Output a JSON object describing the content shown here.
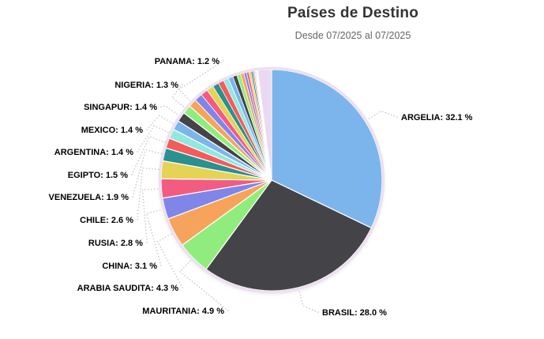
{
  "chart_data": {
    "type": "pie",
    "title": "Países de Destino",
    "subtitle": "Desde 07/2025 al 07/2025",
    "unit": "%",
    "start_angle_deg": 0,
    "direction": "clockwise",
    "legend": "none",
    "label_format": "NAME: value %",
    "slices": [
      {
        "name": "ARGELIA",
        "value": 32.1,
        "color": "#7cb5ec"
      },
      {
        "name": "BRASIL",
        "value": 28.0,
        "color": "#434348"
      },
      {
        "name": "MAURITANIA",
        "value": 4.9,
        "color": "#90ed7d"
      },
      {
        "name": "ARABIA SAUDITA",
        "value": 4.3,
        "color": "#f7a35c"
      },
      {
        "name": "CHINA",
        "value": 3.1,
        "color": "#8085e9"
      },
      {
        "name": "RUSIA",
        "value": 2.8,
        "color": "#f15c80"
      },
      {
        "name": "CHILE",
        "value": 2.6,
        "color": "#e4d354"
      },
      {
        "name": "VENEZUELA",
        "value": 1.9,
        "color": "#2b908f"
      },
      {
        "name": "EGIPTO",
        "value": 1.5,
        "color": "#f45b5b"
      },
      {
        "name": "ARGENTINA",
        "value": 1.4,
        "color": "#91e8e1"
      },
      {
        "name": "MEXICO",
        "value": 1.4,
        "color": "#7cb5ec"
      },
      {
        "name": "SINGAPUR",
        "value": 1.4,
        "color": "#434348"
      },
      {
        "name": "NIGERIA",
        "value": 1.3,
        "color": "#90ed7d"
      },
      {
        "name": "PANAMA",
        "value": 1.2,
        "color": "#f7a35c"
      }
    ],
    "unlabeled_small_slices": {
      "note_values_estimated_from_pixels": true,
      "values": [
        1.15,
        1.05,
        1.0,
        0.9,
        0.85,
        0.75,
        0.7,
        0.6,
        0.55,
        0.5,
        0.4,
        0.35,
        0.3,
        0.25,
        0.2,
        0.15,
        0.12,
        0.1,
        0.08,
        0.06,
        0.04
      ],
      "colors": [
        "#8085e9",
        "#f15c80",
        "#e4d354",
        "#2b908f",
        "#f45b5b",
        "#91e8e1",
        "#7cb5ec",
        "#434348",
        "#90ed7d",
        "#f7a35c",
        "#8085e9",
        "#f15c80",
        "#e4d354",
        "#2b908f",
        "#f45b5b",
        "#91e8e1",
        "#7cb5ec",
        "#434348",
        "#90ed7d",
        "#f7a35c",
        "#8085e9"
      ]
    },
    "final_pale_slice": {
      "value": 2.0,
      "color": "#ead9f0"
    },
    "palette": [
      "#7cb5ec",
      "#434348",
      "#90ed7d",
      "#f7a35c",
      "#8085e9",
      "#f15c80",
      "#e4d354",
      "#2b908f",
      "#f45b5b",
      "#91e8e1"
    ],
    "connector_color": "#c9c9c9",
    "label_text_color": "#000000",
    "title_color": "#333333",
    "subtitle_color": "#666666"
  }
}
